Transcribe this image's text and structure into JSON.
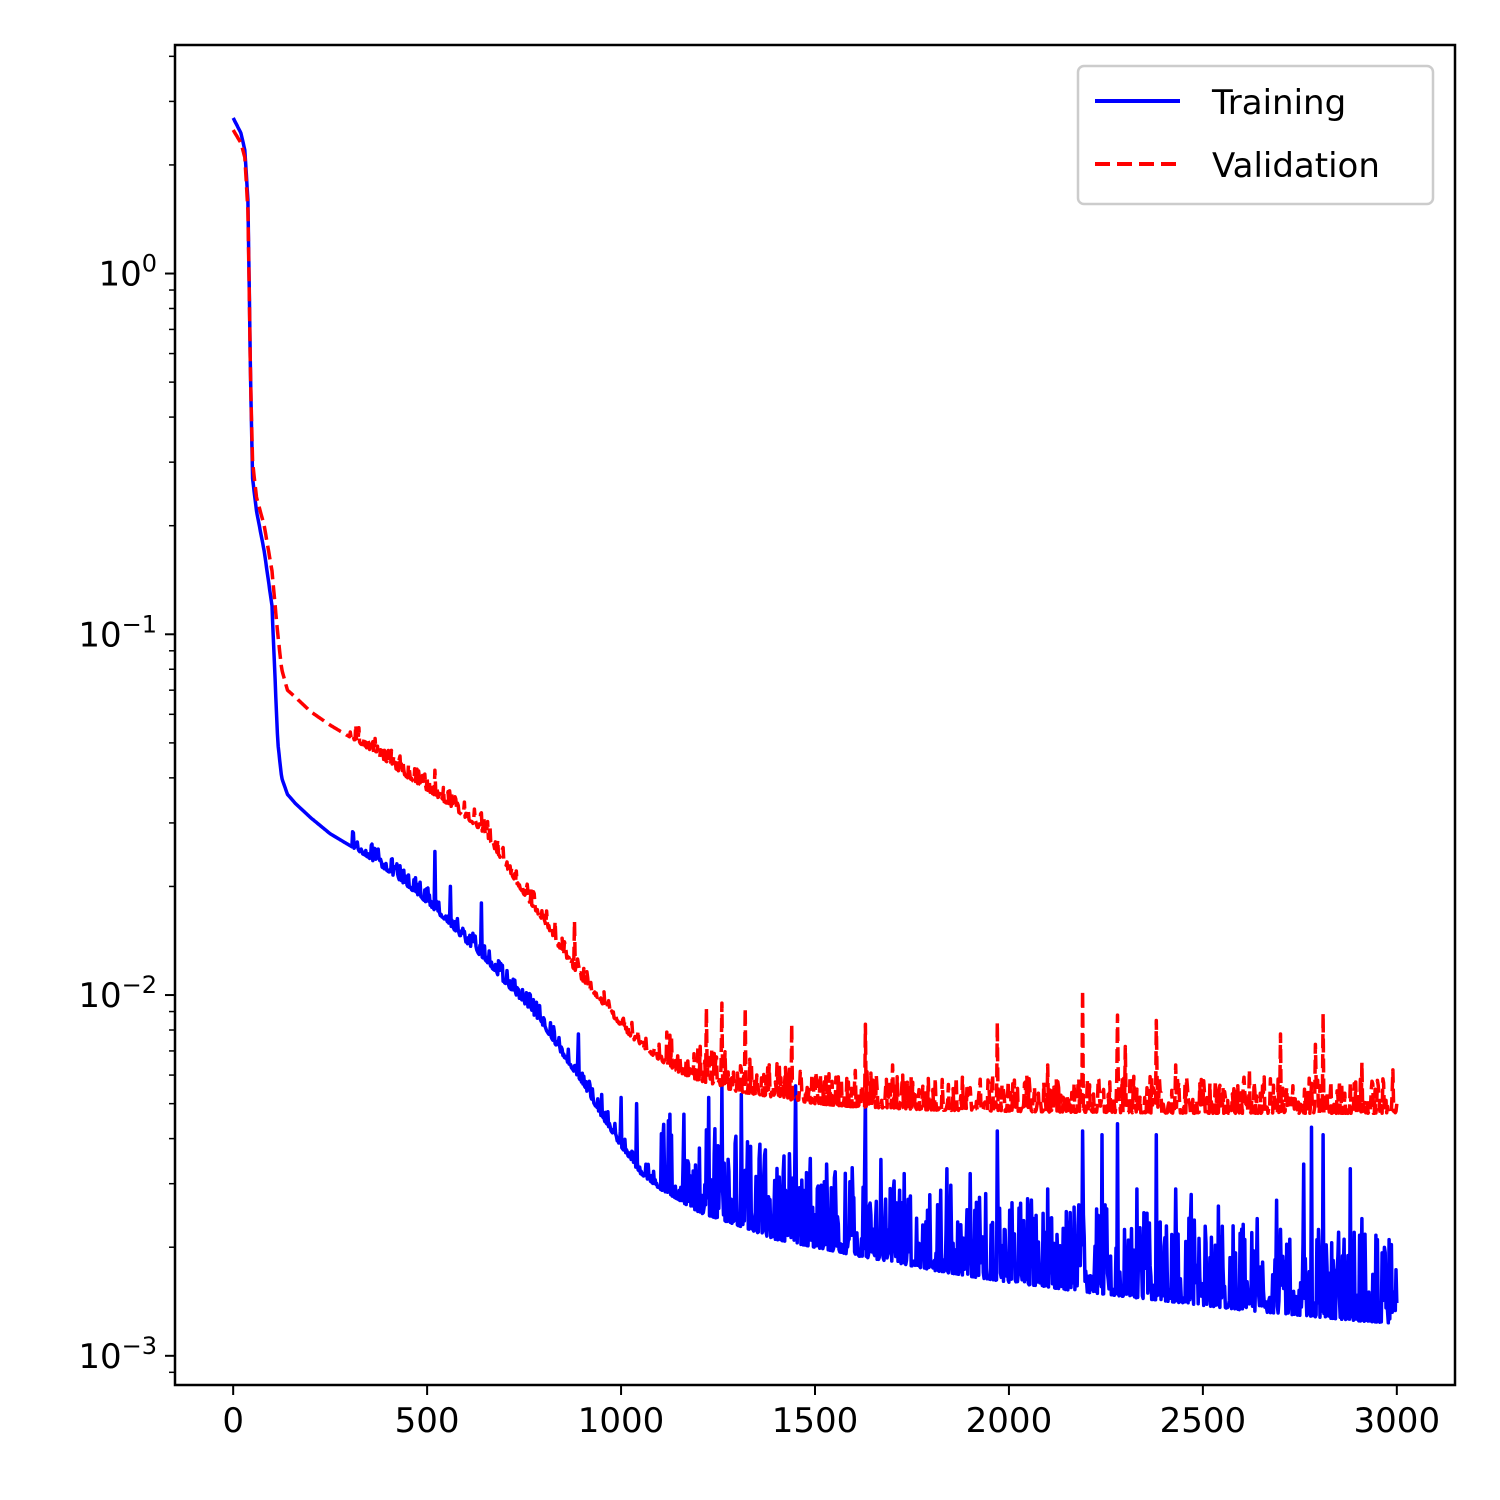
{
  "chart_data": {
    "type": "line",
    "title": "",
    "xlabel": "",
    "ylabel": "",
    "xlim": [
      -150,
      3150
    ],
    "ylim": [
      0.00083,
      4.3
    ],
    "yscale": "log",
    "grid": false,
    "legend": {
      "position": "top-right"
    },
    "x_ticks": [
      {
        "value": 0,
        "label": "0"
      },
      {
        "value": 500,
        "label": "500"
      },
      {
        "value": 1000,
        "label": "1000"
      },
      {
        "value": 1500,
        "label": "1500"
      },
      {
        "value": 2000,
        "label": "2000"
      },
      {
        "value": 2500,
        "label": "2500"
      },
      {
        "value": 3000,
        "label": "3000"
      }
    ],
    "y_ticks": [
      {
        "value": 1,
        "base": "10",
        "exp": "0"
      },
      {
        "value": 0.1,
        "base": "10",
        "exp": "−1"
      },
      {
        "value": 0.01,
        "base": "10",
        "exp": "−2"
      },
      {
        "value": 0.001,
        "base": "10",
        "exp": "−3"
      }
    ],
    "series": [
      {
        "name": "Training",
        "color": "#0000ff",
        "style": "solid",
        "x": [
          0,
          20,
          30,
          38,
          45,
          50,
          60,
          80,
          100,
          115,
          125,
          140,
          160,
          200,
          250,
          300,
          350,
          400,
          450,
          500,
          550,
          600,
          650,
          700,
          750,
          800,
          850,
          900,
          950,
          1000,
          1050,
          1100,
          1150,
          1200,
          1250,
          1300,
          1350,
          1400,
          1450,
          1500,
          1600,
          1700,
          1800,
          1900,
          2000,
          2100,
          2200,
          2300,
          2400,
          2500,
          2600,
          2700,
          2800,
          2900,
          3000
        ],
        "y": [
          2.7,
          2.45,
          2.2,
          1.6,
          0.5,
          0.27,
          0.22,
          0.17,
          0.12,
          0.05,
          0.04,
          0.036,
          0.034,
          0.031,
          0.028,
          0.026,
          0.024,
          0.022,
          0.02,
          0.018,
          0.016,
          0.014,
          0.0125,
          0.0108,
          0.0095,
          0.0082,
          0.0068,
          0.0057,
          0.0046,
          0.0038,
          0.0032,
          0.0029,
          0.0027,
          0.0025,
          0.0024,
          0.0023,
          0.0022,
          0.0021,
          0.00205,
          0.002,
          0.0019,
          0.00182,
          0.00173,
          0.00166,
          0.0016,
          0.00155,
          0.0015,
          0.00146,
          0.00142,
          0.00138,
          0.00134,
          0.00131,
          0.00128,
          0.00125,
          0.00123
        ],
        "spikes": [
          [
            520,
            0.025
          ],
          [
            560,
            0.02
          ],
          [
            640,
            0.018
          ],
          [
            890,
            0.0078
          ],
          [
            950,
            0.0053
          ],
          [
            1000,
            0.0052
          ],
          [
            1040,
            0.005
          ],
          [
            1225,
            0.0052
          ],
          [
            1260,
            0.0056
          ],
          [
            1310,
            0.0053
          ],
          [
            1370,
            0.0036
          ],
          [
            1450,
            0.0056
          ],
          [
            1530,
            0.0034
          ],
          [
            1630,
            0.0053
          ],
          [
            1670,
            0.0035
          ],
          [
            1730,
            0.0032
          ],
          [
            1840,
            0.0033
          ],
          [
            1900,
            0.0032
          ],
          [
            1970,
            0.0042
          ],
          [
            2100,
            0.0029
          ],
          [
            2190,
            0.0042
          ],
          [
            2240,
            0.0041
          ],
          [
            2280,
            0.0044
          ],
          [
            2330,
            0.0029
          ],
          [
            2380,
            0.0041
          ],
          [
            2430,
            0.0029
          ],
          [
            2470,
            0.0028
          ],
          [
            2540,
            0.0026
          ],
          [
            2640,
            0.0024
          ],
          [
            2690,
            0.0027
          ],
          [
            2760,
            0.0034
          ],
          [
            2780,
            0.0043
          ],
          [
            2810,
            0.0041
          ],
          [
            2850,
            0.0022
          ],
          [
            2880,
            0.0033
          ],
          [
            2910,
            0.0024
          ],
          [
            2950,
            0.0021
          ],
          [
            2980,
            0.0021
          ]
        ]
      },
      {
        "name": "Validation",
        "color": "#ff0000",
        "style": "dashed",
        "x": [
          0,
          20,
          30,
          38,
          45,
          50,
          60,
          80,
          100,
          115,
          125,
          140,
          160,
          200,
          250,
          300,
          350,
          400,
          450,
          500,
          550,
          600,
          650,
          700,
          750,
          800,
          850,
          900,
          950,
          1000,
          1050,
          1100,
          1150,
          1200,
          1250,
          1300,
          1350,
          1400,
          1450,
          1500,
          1600,
          1700,
          1800,
          1900,
          2000,
          2100,
          2200,
          2300,
          2400,
          2500,
          2600,
          2700,
          2800,
          2900,
          3000
        ],
        "y": [
          2.5,
          2.3,
          2.1,
          1.5,
          0.5,
          0.3,
          0.24,
          0.2,
          0.15,
          0.1,
          0.08,
          0.07,
          0.067,
          0.061,
          0.056,
          0.052,
          0.048,
          0.044,
          0.04,
          0.037,
          0.034,
          0.031,
          0.028,
          0.023,
          0.019,
          0.016,
          0.013,
          0.011,
          0.0095,
          0.0082,
          0.0072,
          0.0066,
          0.0061,
          0.0058,
          0.0056,
          0.0054,
          0.0053,
          0.0052,
          0.0051,
          0.005,
          0.0049,
          0.00485,
          0.0048,
          0.00478,
          0.00476,
          0.00474,
          0.00473,
          0.00472,
          0.00471,
          0.0047,
          0.0047,
          0.0047,
          0.0047,
          0.0047,
          0.0047
        ],
        "spikes": [
          [
            520,
            0.042
          ],
          [
            640,
            0.032
          ],
          [
            830,
            0.016
          ],
          [
            880,
            0.016
          ],
          [
            1220,
            0.0092
          ],
          [
            1260,
            0.0095
          ],
          [
            1320,
            0.0092
          ],
          [
            1440,
            0.0083
          ],
          [
            1630,
            0.0083
          ],
          [
            1700,
            0.0064
          ],
          [
            1970,
            0.0084
          ],
          [
            2100,
            0.0064
          ],
          [
            2190,
            0.0103
          ],
          [
            2280,
            0.0088
          ],
          [
            2300,
            0.0072
          ],
          [
            2380,
            0.0085
          ],
          [
            2430,
            0.0064
          ],
          [
            2620,
            0.0062
          ],
          [
            2700,
            0.0078
          ],
          [
            2790,
            0.0073
          ],
          [
            2810,
            0.0089
          ],
          [
            2910,
            0.0065
          ],
          [
            2950,
            0.0058
          ],
          [
            2990,
            0.0062
          ]
        ]
      }
    ]
  }
}
